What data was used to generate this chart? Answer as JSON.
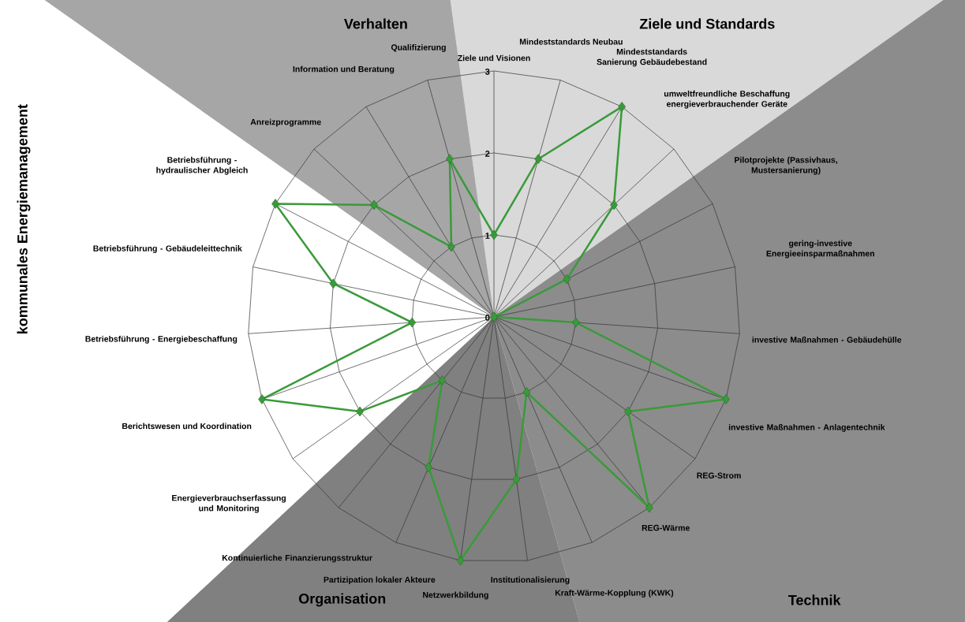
{
  "chart_data": {
    "type": "radar",
    "categories": [
      "Ziele und Visionen",
      "Mindeststandards  Neubau",
      "Mindeststandards Sanierung Gebäudebestand",
      "umweltfreundliche Beschaffung energieverbrauchender Geräte",
      "Pilotprojekte (Passivhaus,  Mustersanierung)",
      "gering-investive Energieeinsparmaßnahmen",
      "investive Maßnahmen  - Gebäudehülle",
      "investive Maßnahmen  - Anlagentechnik",
      "REG-Strom",
      "REG-Wärme",
      "Kraft-Wärme-Kopplung (KWK)",
      "Institutionalisierung",
      "Netzwerkbildung",
      "Partizipation lokaler Akteure",
      "Kontinuierliche Finanzierungsstruktur",
      "Energieverbrauchserfassung und Monitoring",
      "Berichtswesen und Koordination",
      "Betriebsführung - Energiebeschaffung",
      "Betriebsführung - Gebäudeleittechnik",
      "Betriebsführung - hydraulischer Abgleich",
      "Anreizprogramme",
      "Information und Beratung",
      "Qualifizierung"
    ],
    "series": [
      {
        "color": "#3a9a3a",
        "values": [
          1,
          2,
          3,
          2,
          1,
          0,
          1,
          3,
          2,
          3,
          1,
          2,
          3,
          2,
          1,
          2,
          3,
          1,
          2,
          3,
          2,
          1,
          2
        ]
      }
    ],
    "ylim": [
      0,
      3
    ],
    "yticks": [
      0,
      1,
      2,
      3
    ],
    "grid": true,
    "marker": "diamond",
    "line_style": "solid",
    "annotations": [
      "Ziele und Standards",
      "Technik",
      "Organisation",
      "kommunales Energiemanagement",
      "Verhalten"
    ]
  }
}
